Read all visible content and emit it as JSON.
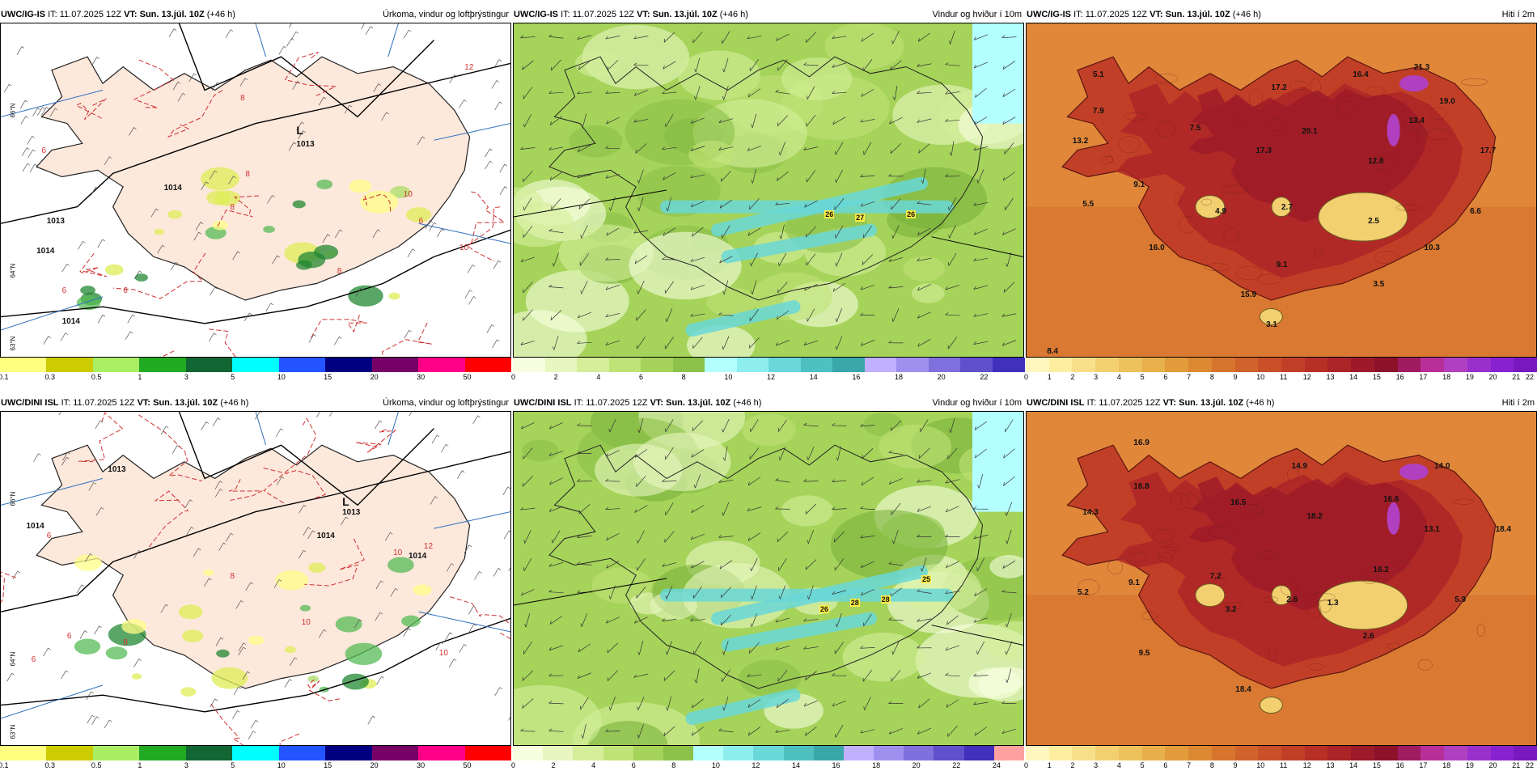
{
  "panels": [
    {
      "id": "p1",
      "model": "UWC/IG-IS",
      "it_label": "IT:",
      "it": "11.07.2025 12Z",
      "vt_label": "VT:",
      "vt": "Sun. 13.júl. 10Z",
      "lead": "(+46 h)",
      "title": "Úrkoma, vindur og loftþrýstingur",
      "type": "precip",
      "colorbar": {
        "colors": [
          "#ffff80",
          "#cccc00",
          "#aaee66",
          "#22aa22",
          "#116633",
          "#00ffff",
          "#2255ff",
          "#000080",
          "#770066",
          "#ff0088",
          "#ff0000"
        ],
        "ticks": [
          "0.1",
          "0.3",
          "0.5",
          "1",
          "3",
          "5",
          "10",
          "15",
          "20",
          "30",
          "50"
        ]
      },
      "labels": [
        {
          "t": "L"
        },
        {
          "t": "1013"
        },
        {
          "t": "1014"
        },
        {
          "t": "1013"
        },
        {
          "t": "1014"
        },
        {
          "t": "1014"
        },
        {
          "t": "6"
        },
        {
          "t": "8"
        },
        {
          "t": "8"
        },
        {
          "t": "10"
        },
        {
          "t": "10"
        },
        {
          "t": "12"
        },
        {
          "t": "6"
        },
        {
          "t": "6"
        },
        {
          "t": "8"
        },
        {
          "t": "8"
        },
        {
          "t": "6"
        },
        {
          "t": "66°N"
        },
        {
          "t": "64°N"
        },
        {
          "t": "63°N"
        }
      ]
    },
    {
      "id": "p2",
      "model": "UWC/IG-IS",
      "it_label": "IT:",
      "it": "11.07.2025 12Z",
      "vt_label": "VT:",
      "vt": "Sun. 13.júl. 10Z",
      "lead": "(+46 h)",
      "title": "Vindur og hviður í 10m",
      "type": "wind",
      "colorbar": {
        "colors": [
          "#f7ffe0",
          "#e8f7c0",
          "#d4ee9a",
          "#bfe377",
          "#a6d35a",
          "#8cc249",
          "#b3ffff",
          "#8eeeee",
          "#6ad8d8",
          "#4fc0c0",
          "#3aa8a8",
          "#c0b0ff",
          "#a090ee",
          "#8070dd",
          "#6050cc",
          "#4030bb"
        ],
        "ticks": [
          "0",
          "2",
          "4",
          "6",
          "8",
          "10",
          "12",
          "14",
          "16",
          "18",
          "20",
          "22"
        ]
      },
      "labels": [
        {
          "t": "26"
        },
        {
          "t": "27"
        },
        {
          "t": "26"
        }
      ]
    },
    {
      "id": "p3",
      "model": "UWC/IG-IS",
      "it_label": "IT:",
      "it": "11.07.2025 12Z",
      "vt_label": "VT:",
      "vt": "Sun. 13.júl. 10Z",
      "lead": "(+46 h)",
      "title": "Hiti í 2m",
      "type": "temp",
      "colorbar": {
        "colors": [
          "#fff6c0",
          "#fdeea0",
          "#f8e08a",
          "#f2d070",
          "#edc15c",
          "#e8b04a",
          "#e39c3c",
          "#dd8833",
          "#d7742e",
          "#d0622b",
          "#c95029",
          "#c23f27",
          "#b82f26",
          "#ab2427",
          "#9c1a29",
          "#8c122c",
          "#a01c60",
          "#b82f9a",
          "#b040c0",
          "#9a30cc",
          "#8822d0",
          "#7a18c0"
        ],
        "ticks": [
          "0",
          "1",
          "2",
          "3",
          "4",
          "5",
          "6",
          "7",
          "8",
          "9",
          "10",
          "11",
          "12",
          "13",
          "14",
          "15",
          "16",
          "17",
          "18",
          "19",
          "20",
          "21",
          "22"
        ]
      },
      "labels": [
        {
          "t": "5.1"
        },
        {
          "t": "7.9"
        },
        {
          "t": "13.2"
        },
        {
          "t": "7.5"
        },
        {
          "t": "17.2"
        },
        {
          "t": "16.4"
        },
        {
          "t": "21.3"
        },
        {
          "t": "19.0"
        },
        {
          "t": "13.4"
        },
        {
          "t": "20.1"
        },
        {
          "t": "17.3"
        },
        {
          "t": "12.8"
        },
        {
          "t": "17.7"
        },
        {
          "t": "9.1"
        },
        {
          "t": "5.5"
        },
        {
          "t": "4.9"
        },
        {
          "t": "2.7"
        },
        {
          "t": "2.5"
        },
        {
          "t": "6.6"
        },
        {
          "t": "10.3"
        },
        {
          "t": "16.0"
        },
        {
          "t": "9.1"
        },
        {
          "t": "3.5"
        },
        {
          "t": "15.9"
        },
        {
          "t": "3.1"
        },
        {
          "t": "8.4"
        }
      ]
    },
    {
      "id": "p4",
      "model": "UWC/DINI ISL",
      "it_label": "IT:",
      "it": "11.07.2025 12Z",
      "vt_label": "VT:",
      "vt": "Sun. 13.júl. 10Z",
      "lead": "(+46 h)",
      "title": "Úrkoma, vindur og loftþrýstingur",
      "type": "precip",
      "colorbar": {
        "colors": [
          "#ffff80",
          "#cccc00",
          "#aaee66",
          "#22aa22",
          "#116633",
          "#00ffff",
          "#2255ff",
          "#000080",
          "#770066",
          "#ff0088",
          "#ff0000"
        ],
        "ticks": [
          "0.1",
          "0.3",
          "0.5",
          "1",
          "3",
          "5",
          "10",
          "15",
          "20",
          "30",
          "50"
        ]
      },
      "labels": [
        {
          "t": "L"
        },
        {
          "t": "1013"
        },
        {
          "t": "1013"
        },
        {
          "t": "1014"
        },
        {
          "t": "1014"
        },
        {
          "t": "1014"
        },
        {
          "t": "12"
        },
        {
          "t": "10"
        },
        {
          "t": "10"
        },
        {
          "t": "8"
        },
        {
          "t": "6"
        },
        {
          "t": "6"
        },
        {
          "t": "8"
        },
        {
          "t": "6"
        },
        {
          "t": "10"
        },
        {
          "t": "66°N"
        },
        {
          "t": "64°N"
        },
        {
          "t": "63°N"
        }
      ]
    },
    {
      "id": "p5",
      "model": "UWC/DINI ISL",
      "it_label": "IT:",
      "it": "11.07.2025 12Z",
      "vt_label": "VT:",
      "vt": "Sun. 13.júl. 10Z",
      "lead": "(+46 h)",
      "title": "Vindur og hviður í 10m",
      "type": "wind",
      "colorbar": {
        "colors": [
          "#f7ffe0",
          "#e8f7c0",
          "#d4ee9a",
          "#bfe377",
          "#a6d35a",
          "#8cc249",
          "#b3ffff",
          "#8eeeee",
          "#6ad8d8",
          "#4fc0c0",
          "#3aa8a8",
          "#c0b0ff",
          "#a090ee",
          "#8070dd",
          "#6050cc",
          "#4030bb",
          "#ffa0a0"
        ],
        "ticks": [
          "0",
          "2",
          "4",
          "6",
          "8",
          "10",
          "12",
          "14",
          "16",
          "18",
          "20",
          "22",
          "24"
        ]
      },
      "labels": [
        {
          "t": "26"
        },
        {
          "t": "28"
        },
        {
          "t": "28"
        },
        {
          "t": "25"
        }
      ]
    },
    {
      "id": "p6",
      "model": "UWC/DINI ISL",
      "it_label": "IT:",
      "it": "11.07.2025 12Z",
      "vt_label": "VT:",
      "vt": "Sun. 13.júl. 10Z",
      "lead": "(+46 h)",
      "title": "Hiti í 2m",
      "type": "temp",
      "colorbar": {
        "colors": [
          "#fff6c0",
          "#fdeea0",
          "#f8e08a",
          "#f2d070",
          "#edc15c",
          "#e8b04a",
          "#e39c3c",
          "#dd8833",
          "#d7742e",
          "#d0622b",
          "#c95029",
          "#c23f27",
          "#b82f26",
          "#ab2427",
          "#9c1a29",
          "#8c122c",
          "#a01c60",
          "#b82f9a",
          "#b040c0",
          "#9a30cc",
          "#8822d0",
          "#7a18c0"
        ],
        "ticks": [
          "0",
          "1",
          "2",
          "3",
          "4",
          "5",
          "6",
          "7",
          "8",
          "9",
          "10",
          "11",
          "12",
          "13",
          "14",
          "15",
          "16",
          "17",
          "18",
          "19",
          "20",
          "21",
          "22"
        ]
      },
      "labels": [
        {
          "t": "16.9"
        },
        {
          "t": "16.8"
        },
        {
          "t": "14.3"
        },
        {
          "t": "14.9"
        },
        {
          "t": "16.5"
        },
        {
          "t": "18.2"
        },
        {
          "t": "16.6"
        },
        {
          "t": "14.0"
        },
        {
          "t": "13.1"
        },
        {
          "t": "18.4"
        },
        {
          "t": "9.1"
        },
        {
          "t": "5.2"
        },
        {
          "t": "7.2"
        },
        {
          "t": "16.2"
        },
        {
          "t": "3.2"
        },
        {
          "t": "2.6"
        },
        {
          "t": "1.3"
        },
        {
          "t": "5.9"
        },
        {
          "t": "2.6"
        },
        {
          "t": "9.5"
        },
        {
          "t": "18.4"
        }
      ]
    }
  ]
}
